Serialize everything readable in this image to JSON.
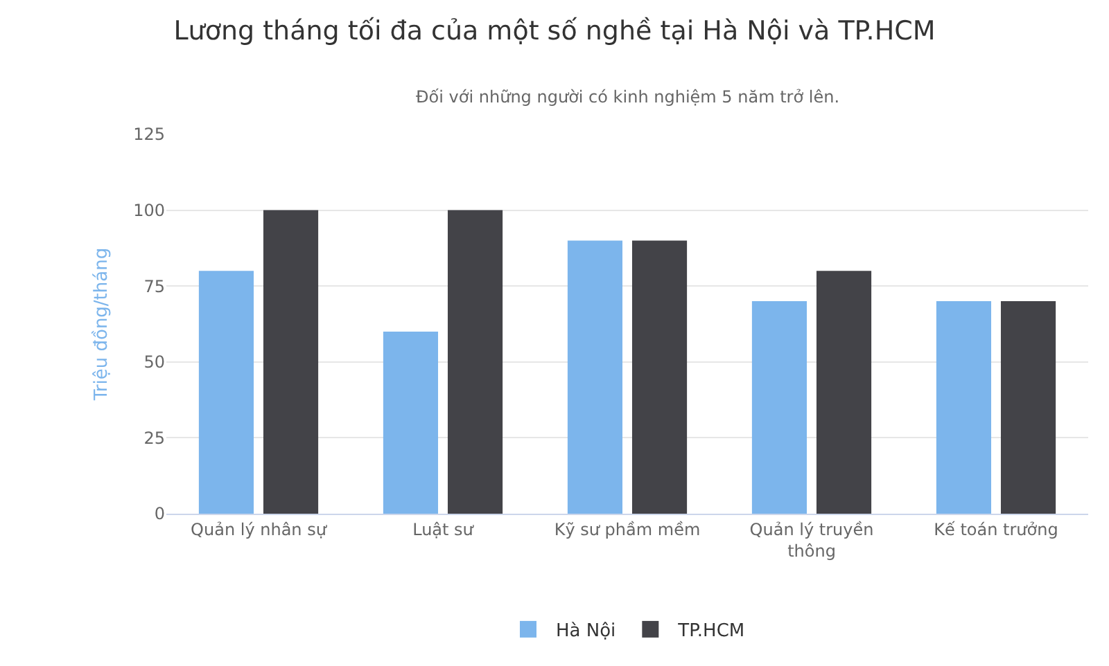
{
  "chart_data": {
    "type": "bar",
    "title": "Lương tháng tối đa của một số nghề tại Hà Nội và TP.HCM",
    "subtitle": "Đối với những người có kinh nghiệm 5 năm trở lên.",
    "ylabel": "Triệu đồng/tháng",
    "categories": [
      "Quản lý nhân sự",
      "Luật sư",
      "Kỹ sư phầm mềm",
      "Quản lý truyền thông",
      "Kế toán trưởng"
    ],
    "series": [
      {
        "name": "Hà Nội",
        "color": "#7cb5ec",
        "values": [
          80,
          60,
          90,
          70,
          70
        ]
      },
      {
        "name": "TP.HCM",
        "color": "#434348",
        "values": [
          100,
          100,
          90,
          80,
          70
        ]
      }
    ],
    "ylim": [
      0,
      125
    ],
    "yticks": [
      0,
      25,
      50,
      75,
      100,
      125
    ],
    "grid": "y",
    "legend": "bottom"
  }
}
